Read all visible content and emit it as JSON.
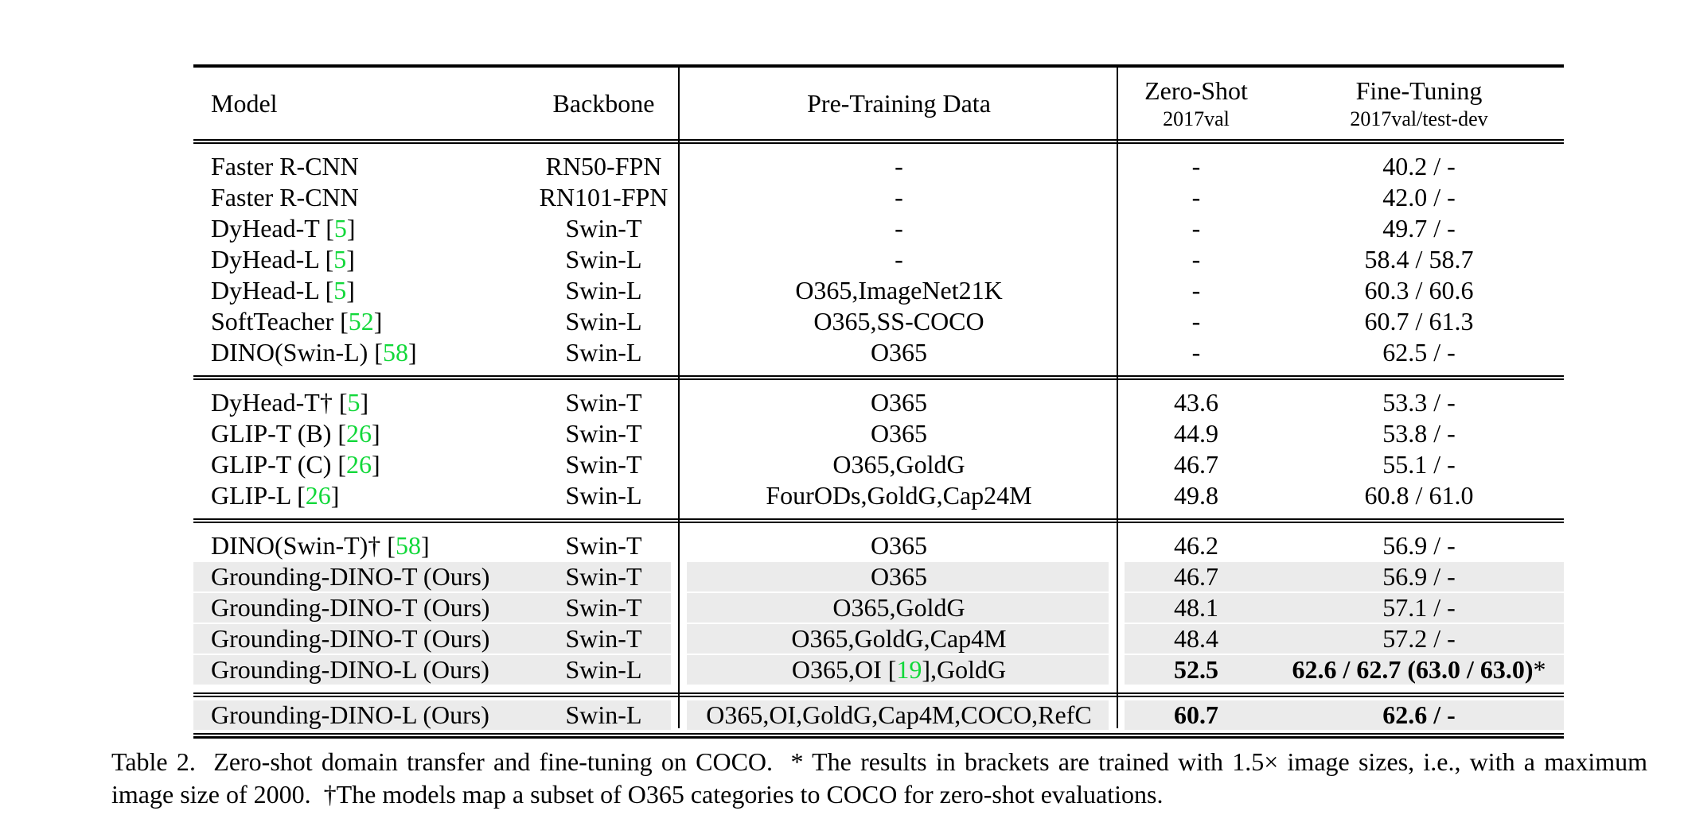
{
  "colors": {
    "citation_green": "#12d83a",
    "row_shade": "#ebebeb",
    "text": "#000000"
  },
  "table": {
    "headers": {
      "model": "Model",
      "backbone": "Backbone",
      "pretrain": "Pre-Training Data",
      "zeroshot_title": "Zero-Shot",
      "zeroshot_sub": "2017val",
      "finetune_title": "Fine-Tuning",
      "finetune_sub": "2017val/test-dev"
    },
    "groups": [
      {
        "rows": [
          {
            "model": "Faster R-CNN",
            "backbone": "RN50-FPN",
            "pretrain": "-",
            "zeroshot": "-",
            "finetune": "40.2 / -"
          },
          {
            "model": "Faster R-CNN",
            "backbone": "RN101-FPN",
            "pretrain": "-",
            "zeroshot": "-",
            "finetune": "42.0 / -"
          },
          {
            "model": "DyHead-T [5]",
            "backbone": "Swin-T",
            "pretrain": "-",
            "zeroshot": "-",
            "finetune": "49.7 / -"
          },
          {
            "model": "DyHead-L [5]",
            "backbone": "Swin-L",
            "pretrain": "-",
            "zeroshot": "-",
            "finetune": "58.4 / 58.7"
          },
          {
            "model": "DyHead-L [5]",
            "backbone": "Swin-L",
            "pretrain": "O365,ImageNet21K",
            "zeroshot": "-",
            "finetune": "60.3 / 60.6"
          },
          {
            "model": "SoftTeacher [52]",
            "backbone": "Swin-L",
            "pretrain": "O365,SS-COCO",
            "zeroshot": "-",
            "finetune": "60.7 / 61.3"
          },
          {
            "model": "DINO(Swin-L) [58]",
            "backbone": "Swin-L",
            "pretrain": "O365",
            "zeroshot": "-",
            "finetune": "62.5 / -"
          }
        ]
      },
      {
        "rows": [
          {
            "model": "DyHead-T† [5]",
            "backbone": "Swin-T",
            "pretrain": "O365",
            "zeroshot": "43.6",
            "finetune": "53.3 / -"
          },
          {
            "model": "GLIP-T (B) [26]",
            "backbone": "Swin-T",
            "pretrain": "O365",
            "zeroshot": "44.9",
            "finetune": "53.8 / -"
          },
          {
            "model": "GLIP-T (C) [26]",
            "backbone": "Swin-T",
            "pretrain": "O365,GoldG",
            "zeroshot": "46.7",
            "finetune": "55.1 / -"
          },
          {
            "model": "GLIP-L [26]",
            "backbone": "Swin-L",
            "pretrain": "FourODs,GoldG,Cap24M",
            "zeroshot": "49.8",
            "finetune": "60.8 / 61.0"
          }
        ]
      },
      {
        "rows": [
          {
            "model": "DINO(Swin-T)† [58]",
            "backbone": "Swin-T",
            "pretrain": "O365",
            "zeroshot": "46.2",
            "finetune": "56.9 / -"
          },
          {
            "model": "Grounding-DINO-T (Ours)",
            "backbone": "Swin-T",
            "pretrain": "O365",
            "zeroshot": "46.7",
            "finetune": "56.9 / -",
            "shaded": true
          },
          {
            "model": "Grounding-DINO-T (Ours)",
            "backbone": "Swin-T",
            "pretrain": "O365,GoldG",
            "zeroshot": "48.1",
            "finetune": "57.1 / -",
            "shaded": true
          },
          {
            "model": "Grounding-DINO-T (Ours)",
            "backbone": "Swin-T",
            "pretrain": "O365,GoldG,Cap4M",
            "zeroshot": "48.4",
            "finetune": "57.2 / -",
            "shaded": true
          },
          {
            "model": "Grounding-DINO-L (Ours)",
            "backbone": "Swin-L",
            "pretrain": "O365,OI [19],GoldG",
            "zeroshot": "52.5",
            "finetune": "62.6 / 62.7 (63.0 / 63.0)*",
            "shaded": true,
            "bold": true
          }
        ]
      },
      {
        "rows": [
          {
            "model": "Grounding-DINO-L (Ours)",
            "backbone": "Swin-L",
            "pretrain": "O365,OI,GoldG,Cap4M,COCO,RefC",
            "zeroshot": "60.7",
            "finetune": "62.6 / -",
            "shaded": true,
            "bold": true
          }
        ]
      }
    ]
  },
  "caption": "Table 2.  Zero-shot domain transfer and fine-tuning on COCO.  * The results in brackets are trained with 1.5× image sizes, i.e., with a maximum image size of 2000.  †The models map a subset of O365 categories to COCO for zero-shot evaluations."
}
